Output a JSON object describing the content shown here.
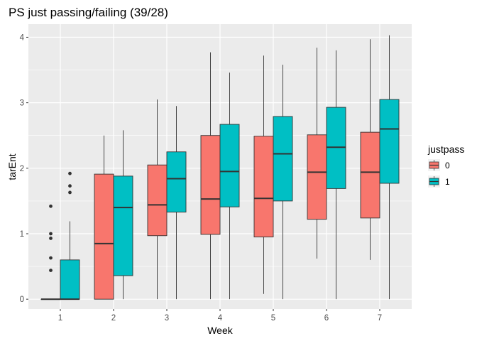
{
  "chart_data": {
    "type": "boxplot",
    "title": "PS just passing/failing (39/28)",
    "xlabel": "Week",
    "ylabel": "tarEnt",
    "categories": [
      "1",
      "2",
      "3",
      "4",
      "5",
      "6",
      "7"
    ],
    "ylim": [
      -0.15,
      4.2
    ],
    "yticks": [
      0,
      1,
      2,
      3,
      4
    ],
    "grid": true,
    "legend": {
      "title": "justpass",
      "position": "right",
      "entries": [
        {
          "label": "0",
          "color": "#F8766D"
        },
        {
          "label": "1",
          "color": "#00BFC4"
        }
      ]
    },
    "series": [
      {
        "name": "0",
        "color": "#F8766D",
        "boxes": [
          {
            "week": "1",
            "min": 0,
            "q1": 0,
            "median": 0,
            "q3": 0,
            "max": 0,
            "outliers": [
              0.44,
              0.63,
              0.93,
              1.0,
              1.42
            ]
          },
          {
            "week": "2",
            "min": 0,
            "q1": 0,
            "median": 0.85,
            "q3": 1.91,
            "max": 2.5,
            "outliers": []
          },
          {
            "week": "3",
            "min": 0,
            "q1": 0.97,
            "median": 1.44,
            "q3": 2.05,
            "max": 3.05,
            "outliers": []
          },
          {
            "week": "4",
            "min": 0,
            "q1": 0.99,
            "median": 1.53,
            "q3": 2.5,
            "max": 3.77,
            "outliers": []
          },
          {
            "week": "5",
            "min": 0.08,
            "q1": 0.95,
            "median": 1.54,
            "q3": 2.49,
            "max": 3.72,
            "outliers": []
          },
          {
            "week": "6",
            "min": 0.62,
            "q1": 1.22,
            "median": 1.94,
            "q3": 2.51,
            "max": 3.84,
            "outliers": []
          },
          {
            "week": "7",
            "min": 0.6,
            "q1": 1.24,
            "median": 1.94,
            "q3": 2.55,
            "max": 3.97,
            "outliers": []
          }
        ]
      },
      {
        "name": "1",
        "color": "#00BFC4",
        "boxes": [
          {
            "week": "1",
            "min": 0,
            "q1": 0,
            "median": 0,
            "q3": 0.6,
            "max": 1.19,
            "outliers": [
              1.63,
              1.73,
              1.92
            ]
          },
          {
            "week": "2",
            "min": 0,
            "q1": 0.36,
            "median": 1.4,
            "q3": 1.88,
            "max": 2.58,
            "outliers": []
          },
          {
            "week": "3",
            "min": 0,
            "q1": 1.33,
            "median": 1.84,
            "q3": 2.25,
            "max": 2.95,
            "outliers": []
          },
          {
            "week": "4",
            "min": 0,
            "q1": 1.41,
            "median": 1.95,
            "q3": 2.67,
            "max": 3.46,
            "outliers": []
          },
          {
            "week": "5",
            "min": 0,
            "q1": 1.5,
            "median": 2.22,
            "q3": 2.79,
            "max": 3.58,
            "outliers": []
          },
          {
            "week": "6",
            "min": 0,
            "q1": 1.69,
            "median": 2.32,
            "q3": 2.93,
            "max": 3.8,
            "outliers": []
          },
          {
            "week": "7",
            "min": 0,
            "q1": 1.77,
            "median": 2.6,
            "q3": 3.05,
            "max": 4.03,
            "outliers": []
          }
        ]
      }
    ]
  }
}
